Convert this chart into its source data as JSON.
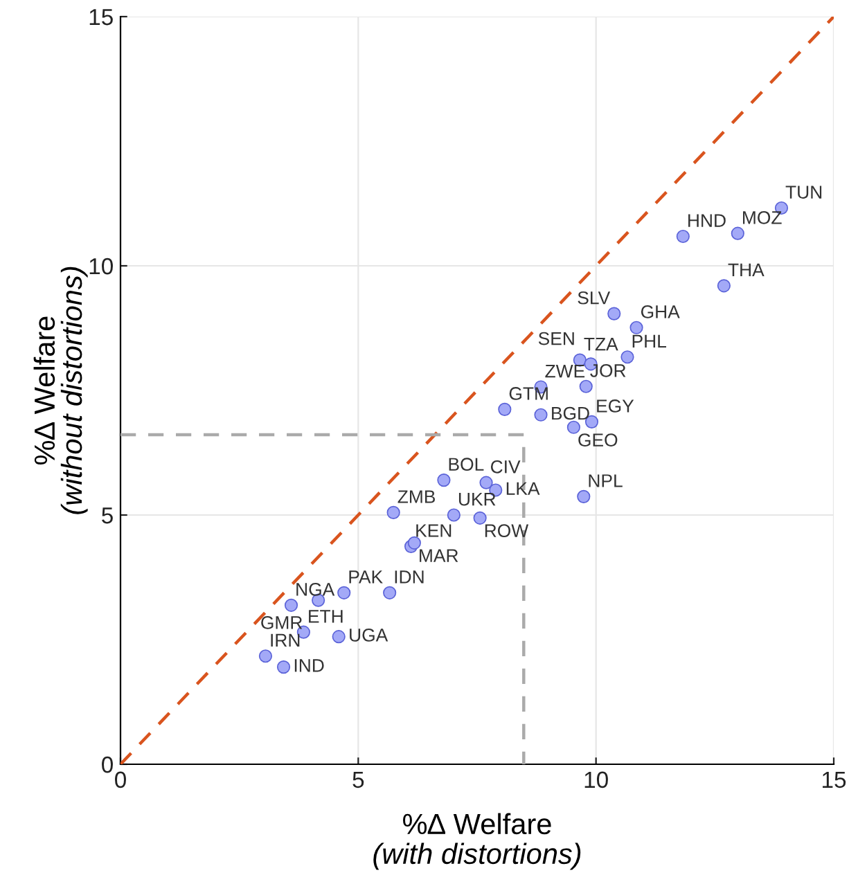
{
  "chart_data": {
    "type": "scatter",
    "xlabel": "%∆ Welfare\n(with distortions)",
    "ylabel": "%∆ Welfare\n(without distortions)",
    "xlim": [
      0,
      15
    ],
    "ylim": [
      0,
      15
    ],
    "xticks": [
      0,
      5,
      10,
      15
    ],
    "yticks": [
      0,
      5,
      10,
      15
    ],
    "grid": true,
    "marker": "circle",
    "series": [
      {
        "color": "#a3a9f7",
        "x": [
          3.05,
          3.43,
          3.85,
          4.59,
          3.59,
          4.16,
          4.7,
          5.66,
          6.11,
          6.18,
          5.74,
          7.01,
          7.56,
          6.8,
          7.69,
          7.89,
          9.74,
          8.08,
          8.84,
          9.53,
          9.91,
          8.84,
          9.79,
          9.66,
          9.89,
          10.66,
          10.85,
          10.38,
          11.83,
          12.98,
          13.9,
          12.69
        ],
        "values": [
          2.17,
          1.95,
          2.65,
          2.56,
          3.19,
          3.29,
          3.44,
          3.44,
          4.37,
          4.44,
          5.05,
          5.0,
          4.94,
          5.7,
          5.65,
          5.5,
          5.37,
          7.12,
          7.01,
          6.76,
          6.87,
          7.57,
          7.58,
          8.11,
          8.03,
          8.17,
          8.76,
          9.04,
          10.59,
          10.65,
          11.16,
          9.6
        ]
      },
      {
        "type": "line",
        "color": "#d9541e",
        "line_style": "dashed",
        "marker": "none",
        "x": [
          0,
          15
        ],
        "values": [
          0,
          15
        ]
      },
      {
        "type": "line",
        "color": "#aaaaaa",
        "line_style": "dashed",
        "marker": "none",
        "x": [
          0,
          8.48,
          8.48
        ],
        "values": [
          6.61,
          6.61,
          0
        ]
      }
    ],
    "annotations": [
      {
        "text": "IRN",
        "x": 3.05,
        "y": 2.17
      },
      {
        "text": "IND",
        "x": 3.43,
        "y": 1.95
      },
      {
        "text": "ETH",
        "x": 3.85,
        "y": 2.65
      },
      {
        "text": "UGA",
        "x": 4.59,
        "y": 2.56
      },
      {
        "text": "NGA",
        "x": 3.59,
        "y": 3.19
      },
      {
        "text": "GMR",
        "x": 4.16,
        "y": 3.29
      },
      {
        "text": "PAK",
        "x": 4.7,
        "y": 3.44
      },
      {
        "text": "IDN",
        "x": 5.66,
        "y": 3.44
      },
      {
        "text": "KEN",
        "x": 6.11,
        "y": 4.37
      },
      {
        "text": "MAR",
        "x": 6.18,
        "y": 4.44
      },
      {
        "text": "ZMB",
        "x": 5.74,
        "y": 5.05
      },
      {
        "text": "UKR",
        "x": 7.01,
        "y": 5.0
      },
      {
        "text": "ROW",
        "x": 7.56,
        "y": 4.94
      },
      {
        "text": "BOL",
        "x": 6.8,
        "y": 5.7
      },
      {
        "text": "CIV",
        "x": 7.69,
        "y": 5.65
      },
      {
        "text": "LKA",
        "x": 7.89,
        "y": 5.5
      },
      {
        "text": "NPL",
        "x": 9.74,
        "y": 5.37
      },
      {
        "text": "GTM",
        "x": 8.08,
        "y": 7.12
      },
      {
        "text": "BGD",
        "x": 8.84,
        "y": 7.01
      },
      {
        "text": "GEO",
        "x": 9.53,
        "y": 6.76
      },
      {
        "text": "EGY",
        "x": 9.91,
        "y": 6.87
      },
      {
        "text": "ZWE",
        "x": 8.84,
        "y": 7.57
      },
      {
        "text": "JOR",
        "x": 9.79,
        "y": 7.58
      },
      {
        "text": "TZA",
        "x": 9.66,
        "y": 8.11
      },
      {
        "text": "SEN",
        "x": 9.89,
        "y": 8.03
      },
      {
        "text": "PHL",
        "x": 10.66,
        "y": 8.17
      },
      {
        "text": "GHA",
        "x": 10.85,
        "y": 8.76
      },
      {
        "text": "SLV",
        "x": 10.38,
        "y": 9.04
      },
      {
        "text": "HND",
        "x": 11.83,
        "y": 10.59
      },
      {
        "text": "MOZ",
        "x": 12.98,
        "y": 10.65
      },
      {
        "text": "TUN",
        "x": 13.9,
        "y": 11.16
      },
      {
        "text": "THA",
        "x": 12.69,
        "y": 9.6
      }
    ]
  }
}
